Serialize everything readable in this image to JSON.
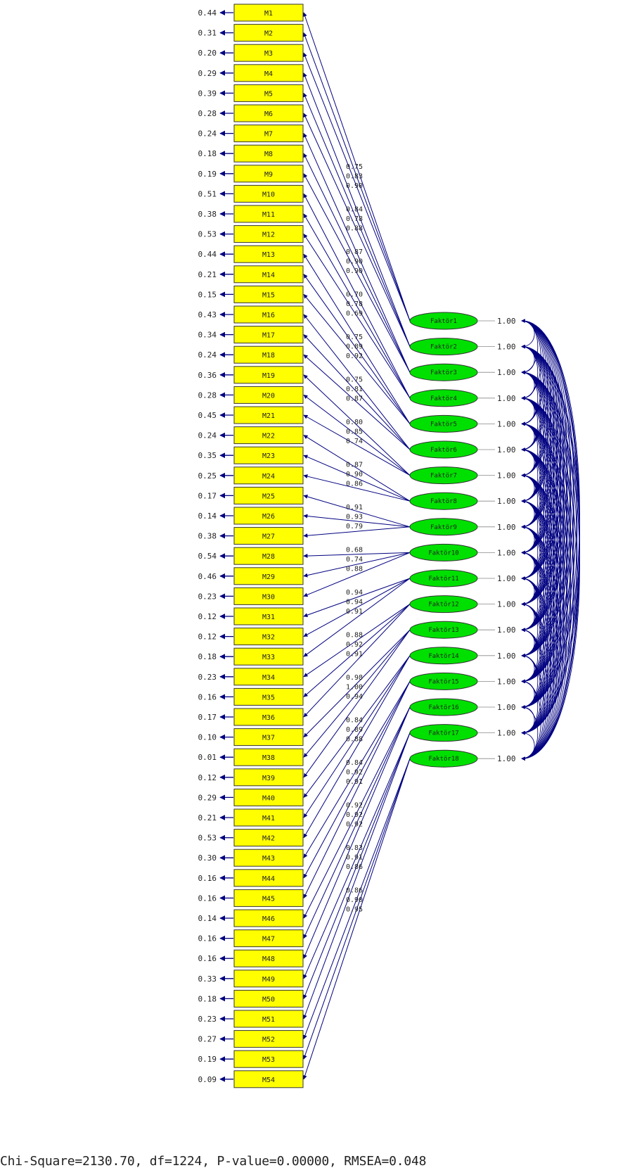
{
  "colors": {
    "observed_fill": "#ffff00",
    "latent_fill": "#00e000",
    "arrow": "#000080",
    "text": "#222222"
  },
  "observed": [
    {
      "label": "M1",
      "error": "0.44"
    },
    {
      "label": "M2",
      "error": "0.31"
    },
    {
      "label": "M3",
      "error": "0.20"
    },
    {
      "label": "M4",
      "error": "0.29"
    },
    {
      "label": "M5",
      "error": "0.39"
    },
    {
      "label": "M6",
      "error": "0.28"
    },
    {
      "label": "M7",
      "error": "0.24"
    },
    {
      "label": "M8",
      "error": "0.18"
    },
    {
      "label": "M9",
      "error": "0.19"
    },
    {
      "label": "M10",
      "error": "0.51"
    },
    {
      "label": "M11",
      "error": "0.38"
    },
    {
      "label": "M12",
      "error": "0.53"
    },
    {
      "label": "M13",
      "error": "0.44"
    },
    {
      "label": "M14",
      "error": "0.21"
    },
    {
      "label": "M15",
      "error": "0.15"
    },
    {
      "label": "M16",
      "error": "0.43"
    },
    {
      "label": "M17",
      "error": "0.34"
    },
    {
      "label": "M18",
      "error": "0.24"
    },
    {
      "label": "M19",
      "error": "0.36"
    },
    {
      "label": "M20",
      "error": "0.28"
    },
    {
      "label": "M21",
      "error": "0.45"
    },
    {
      "label": "M22",
      "error": "0.24"
    },
    {
      "label": "M23",
      "error": "0.35"
    },
    {
      "label": "M24",
      "error": "0.25"
    },
    {
      "label": "M25",
      "error": "0.17"
    },
    {
      "label": "M26",
      "error": "0.14"
    },
    {
      "label": "M27",
      "error": "0.38"
    },
    {
      "label": "M28",
      "error": "0.54"
    },
    {
      "label": "M29",
      "error": "0.46"
    },
    {
      "label": "M30",
      "error": "0.23"
    },
    {
      "label": "M31",
      "error": "0.12"
    },
    {
      "label": "M32",
      "error": "0.12"
    },
    {
      "label": "M33",
      "error": "0.18"
    },
    {
      "label": "M34",
      "error": "0.23"
    },
    {
      "label": "M35",
      "error": "0.16"
    },
    {
      "label": "M36",
      "error": "0.17"
    },
    {
      "label": "M37",
      "error": "0.10"
    },
    {
      "label": "M38",
      "error": "0.01"
    },
    {
      "label": "M39",
      "error": "0.12"
    },
    {
      "label": "M40",
      "error": "0.29"
    },
    {
      "label": "M41",
      "error": "0.21"
    },
    {
      "label": "M42",
      "error": "0.53"
    },
    {
      "label": "M43",
      "error": "0.30"
    },
    {
      "label": "M44",
      "error": "0.16"
    },
    {
      "label": "M45",
      "error": "0.16"
    },
    {
      "label": "M46",
      "error": "0.14"
    },
    {
      "label": "M47",
      "error": "0.16"
    },
    {
      "label": "M48",
      "error": "0.16"
    },
    {
      "label": "M49",
      "error": "0.33"
    },
    {
      "label": "M50",
      "error": "0.18"
    },
    {
      "label": "M51",
      "error": "0.23"
    },
    {
      "label": "M52",
      "error": "0.27"
    },
    {
      "label": "M53",
      "error": "0.19"
    },
    {
      "label": "M54",
      "error": "0.09"
    }
  ],
  "factors": [
    {
      "label": "Faktör1",
      "variance": "1.00",
      "loadings": [
        "0.75",
        "0.83",
        "0.90"
      ]
    },
    {
      "label": "Faktör2",
      "variance": "1.00",
      "loadings": [
        "0.84",
        "0.78",
        "0.88"
      ]
    },
    {
      "label": "Faktör3",
      "variance": "1.00",
      "loadings": [
        "0.87",
        "0.90",
        "0.90"
      ]
    },
    {
      "label": "Faktör4",
      "variance": "1.00",
      "loadings": [
        "0.70",
        "0.78",
        "0.69"
      ]
    },
    {
      "label": "Faktör5",
      "variance": "1.00",
      "loadings": [
        "0.75",
        "0.89",
        "0.92"
      ]
    },
    {
      "label": "Faktör6",
      "variance": "1.00",
      "loadings": [
        "0.75",
        "0.81",
        "0.87"
      ]
    },
    {
      "label": "Faktör7",
      "variance": "1.00",
      "loadings": [
        "0.80",
        "0.85",
        "0.74"
      ]
    },
    {
      "label": "Faktör8",
      "variance": "1.00",
      "loadings": [
        "0.87",
        "0.90",
        "0.86"
      ]
    },
    {
      "label": "Faktör9",
      "variance": "1.00",
      "loadings": [
        "0.91",
        "0.93",
        "0.79"
      ]
    },
    {
      "label": "Faktör10",
      "variance": "1.00",
      "loadings": [
        "0.68",
        "0.74",
        "0.88"
      ]
    },
    {
      "label": "Faktör11",
      "variance": "1.00",
      "loadings": [
        "0.94",
        "0.94",
        "0.91"
      ]
    },
    {
      "label": "Faktör12",
      "variance": "1.00",
      "loadings": [
        "0.88",
        "0.92",
        "0.91"
      ]
    },
    {
      "label": "Faktör13",
      "variance": "1.00",
      "loadings": [
        "0.98",
        "1.00",
        "0.94"
      ]
    },
    {
      "label": "Faktör14",
      "variance": "1.00",
      "loadings": [
        "0.84",
        "0.89",
        "0.88"
      ]
    },
    {
      "label": "Faktör15",
      "variance": "1.00",
      "loadings": [
        "0.84",
        "0.92",
        "0.91"
      ]
    },
    {
      "label": "Faktör16",
      "variance": "1.00",
      "loadings": [
        "0.92",
        "0.92",
        "0.92"
      ]
    },
    {
      "label": "Faktör17",
      "variance": "1.00",
      "loadings": [
        "0.83",
        "0.91",
        "0.86"
      ]
    },
    {
      "label": "Faktör18",
      "variance": "1.00",
      "loadings": [
        "0.86",
        "0.90",
        "0.95"
      ]
    }
  ],
  "fit_statistics": "Chi-Square=2130.70, df=1224, P-value=0.00000, RMSEA=0.048"
}
